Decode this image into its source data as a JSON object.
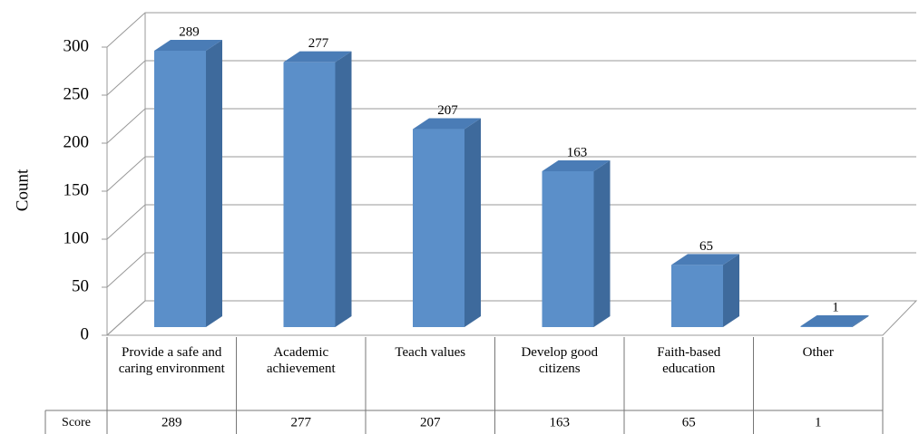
{
  "chart_data": {
    "type": "bar3d",
    "y_axis_label": "Count",
    "categories": [
      "Provide a safe and caring environment",
      "Academic achievement",
      "Teach values",
      "Develop good citizens",
      "Faith-based education",
      "Other"
    ],
    "series": [
      {
        "name": "Score",
        "color": "#5b8fc9",
        "values": [
          289,
          277,
          207,
          163,
          65,
          1
        ]
      }
    ],
    "ylim": [
      0,
      300
    ],
    "yticks": [
      0,
      50,
      100,
      150,
      200,
      250,
      300
    ],
    "grid": true,
    "data_table": true
  }
}
